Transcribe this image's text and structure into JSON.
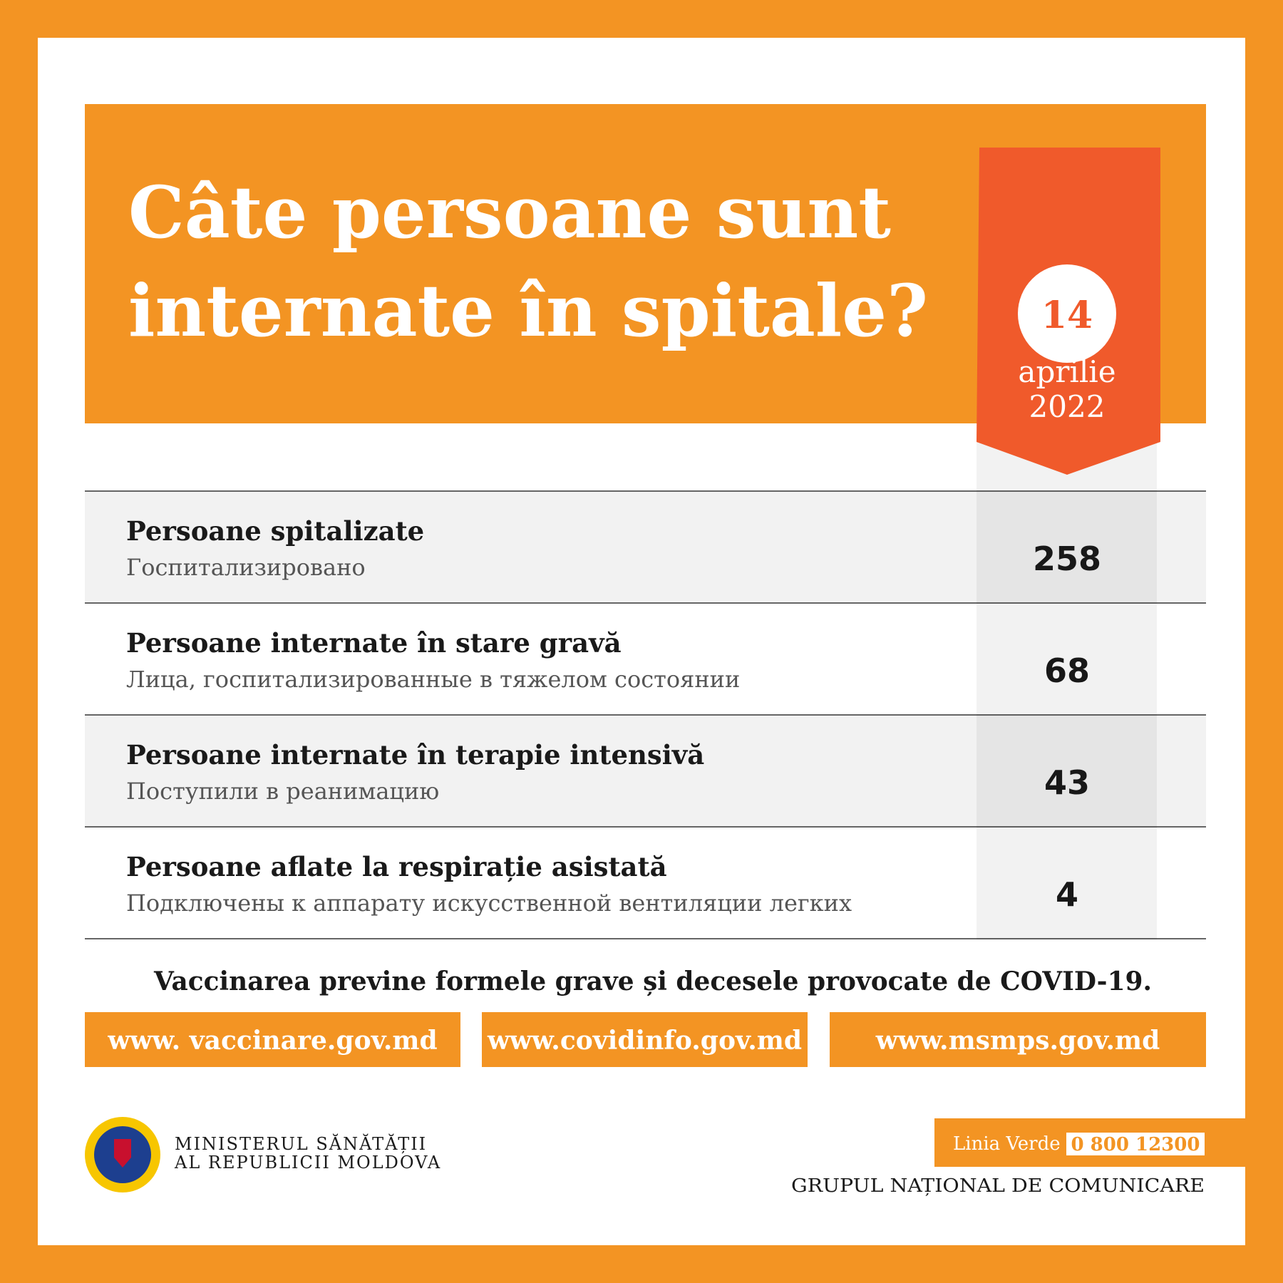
{
  "header": {
    "title_lines": [
      "Câte persoane sunt",
      "internate în spitale?"
    ],
    "date": {
      "day": "14",
      "month": "aprilie",
      "year": "2022"
    }
  },
  "table": {
    "rows": [
      {
        "label": "Persoane spitalizate",
        "sublabel": "Госпитализировано",
        "value": 258
      },
      {
        "label": "Persoane internate în stare gravă",
        "sublabel": "Лица, госпитализированные в тяжелом состоянии",
        "value": 68
      },
      {
        "label": "Persoane internate în terapie intensivă",
        "sublabel": "Поступили в реанимацию",
        "value": 43
      },
      {
        "label": "Persoane aflate la respirație asistată",
        "sublabel": "Подключены к аппарату искусственной вентиляции легких",
        "value": 4
      }
    ]
  },
  "footer": {
    "slogan": "Vaccinarea previne formele grave și decesele provocate de COVID-19.",
    "links": [
      "www. vaccinare.gov.md",
      "www.covidinfo.gov.md",
      "www.msmps.gov.md"
    ],
    "ministry": [
      "MINISTERUL SĂNĂTĂȚII",
      "AL REPUBLICII MOLDOVA"
    ],
    "hotline": {
      "label": "Linia Verde",
      "number": "0 800 12300"
    },
    "group": "GRUPUL NAȚIONAL DE COMUNICARE"
  }
}
